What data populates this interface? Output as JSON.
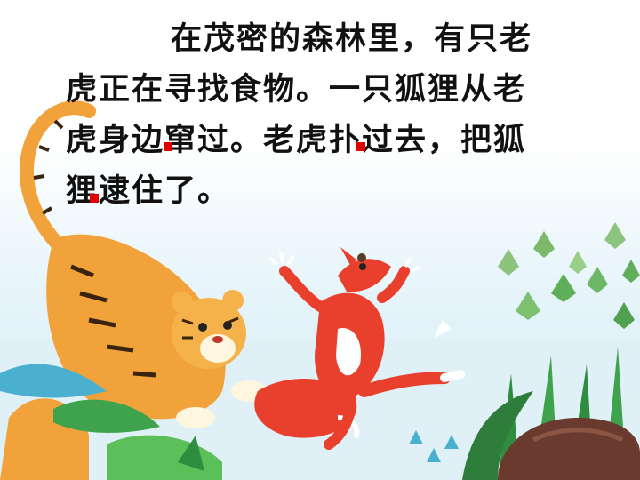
{
  "passage": {
    "lines": [
      "在茂密的森林里，有只老",
      "虎正在寻找食物。一只狐狸从老",
      "虎身边窜过。老虎扑过去，把狐",
      "狸逮住了。"
    ]
  },
  "colors": {
    "marker": "#e00000",
    "tiger": "#f2a23a",
    "fox": "#e8402c",
    "leaves": "#3fa34d"
  },
  "illustration": {
    "subjects": [
      "tiger",
      "fox",
      "grass",
      "plants",
      "rock"
    ]
  }
}
